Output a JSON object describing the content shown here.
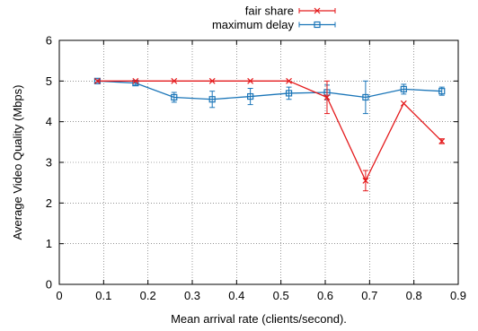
{
  "chart_data": {
    "type": "line",
    "xlabel": "Mean arrival rate (clients/second).",
    "ylabel": "Average Video Quality (Mbps)",
    "xlim": [
      0,
      0.9
    ],
    "ylim": [
      0,
      6
    ],
    "xticks": [
      0,
      0.1,
      0.2,
      0.3,
      0.4,
      0.5,
      0.6,
      0.7,
      0.8,
      0.9
    ],
    "xtick_labels": [
      "0",
      "0.1",
      "0.2",
      "0.3",
      "0.4",
      "0.5",
      "0.6",
      "0.7",
      "0.8",
      "0.9"
    ],
    "yticks": [
      0,
      1,
      2,
      3,
      4,
      5,
      6
    ],
    "ytick_labels": [
      "0",
      "1",
      "2",
      "3",
      "4",
      "5",
      "6"
    ],
    "grid": true,
    "legend_position": "top-right",
    "series": [
      {
        "name": "fair share",
        "color": "#e41a1c",
        "marker": "x",
        "points": [
          {
            "x": 0.086,
            "y": 5.0,
            "err": 0.0
          },
          {
            "x": 0.172,
            "y": 5.0,
            "err": 0.0
          },
          {
            "x": 0.259,
            "y": 5.0,
            "err": 0.0
          },
          {
            "x": 0.345,
            "y": 5.0,
            "err": 0.0
          },
          {
            "x": 0.431,
            "y": 5.0,
            "err": 0.0
          },
          {
            "x": 0.518,
            "y": 5.0,
            "err": 0.0
          },
          {
            "x": 0.604,
            "y": 4.6,
            "err": 0.4
          },
          {
            "x": 0.691,
            "y": 2.55,
            "err": 0.25
          },
          {
            "x": 0.777,
            "y": 4.45,
            "err": 0.0
          },
          {
            "x": 0.863,
            "y": 3.52,
            "err": 0.06
          }
        ]
      },
      {
        "name": "maximum delay",
        "color": "#1a75b8",
        "marker": "square",
        "points": [
          {
            "x": 0.086,
            "y": 5.0,
            "err": 0.03
          },
          {
            "x": 0.172,
            "y": 4.95,
            "err": 0.05
          },
          {
            "x": 0.259,
            "y": 4.6,
            "err": 0.12
          },
          {
            "x": 0.345,
            "y": 4.55,
            "err": 0.2
          },
          {
            "x": 0.431,
            "y": 4.62,
            "err": 0.2
          },
          {
            "x": 0.518,
            "y": 4.7,
            "err": 0.15
          },
          {
            "x": 0.604,
            "y": 4.72,
            "err": 0.18
          },
          {
            "x": 0.691,
            "y": 4.6,
            "err": 0.4
          },
          {
            "x": 0.777,
            "y": 4.8,
            "err": 0.12
          },
          {
            "x": 0.863,
            "y": 4.75,
            "err": 0.1
          }
        ]
      }
    ]
  }
}
